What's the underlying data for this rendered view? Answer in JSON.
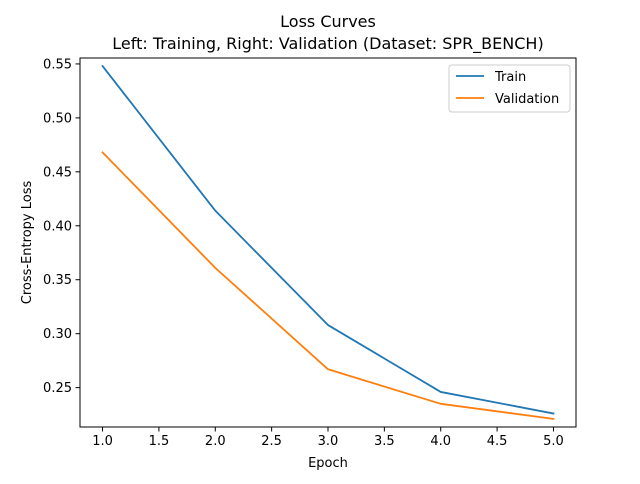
{
  "chart_data": {
    "type": "line",
    "title_line1": "Loss Curves",
    "title_line2": "Left: Training, Right: Validation  (Dataset: SPR_BENCH)",
    "xlabel": "Epoch",
    "ylabel": "Cross-Entropy Loss",
    "xlim": [
      0.8,
      5.2
    ],
    "ylim": [
      0.2135,
      0.5555
    ],
    "xticks": [
      1.0,
      1.5,
      2.0,
      2.5,
      3.0,
      3.5,
      4.0,
      4.5,
      5.0
    ],
    "xtick_labels": [
      "1.0",
      "1.5",
      "2.0",
      "2.5",
      "3.0",
      "3.5",
      "4.0",
      "4.5",
      "5.0"
    ],
    "yticks": [
      0.25,
      0.3,
      0.35,
      0.4,
      0.45,
      0.5,
      0.55
    ],
    "ytick_labels": [
      "0.25",
      "0.30",
      "0.35",
      "0.40",
      "0.45",
      "0.50",
      "0.55"
    ],
    "grid": false,
    "legend_position": "top-right",
    "x": [
      1,
      2,
      3,
      4,
      5
    ],
    "series": [
      {
        "name": "Train",
        "color": "#1f77b4",
        "values": [
          0.548,
          0.414,
          0.308,
          0.246,
          0.226
        ]
      },
      {
        "name": "Validation",
        "color": "#ff7f0e",
        "values": [
          0.468,
          0.361,
          0.267,
          0.235,
          0.221
        ]
      }
    ]
  }
}
